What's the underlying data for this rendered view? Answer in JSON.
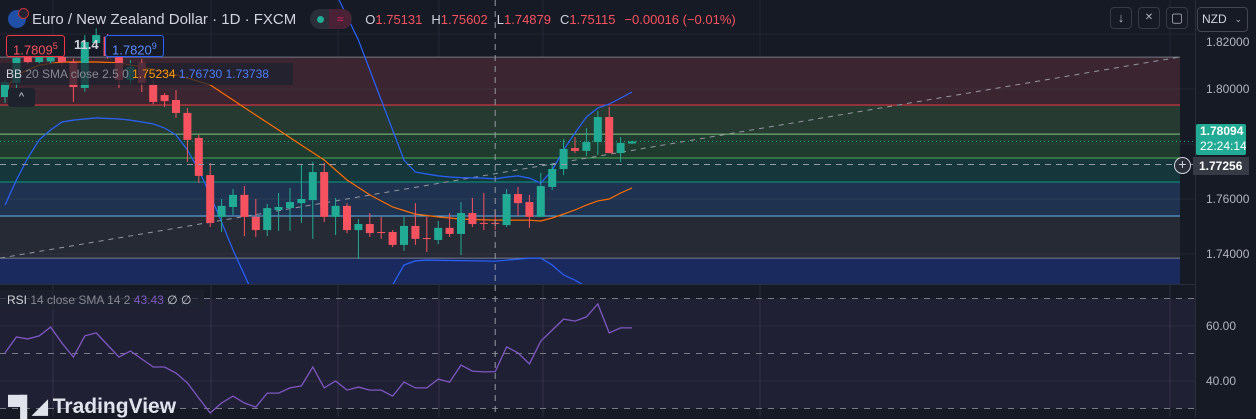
{
  "header": {
    "title": "Euro / New Zealand Dollar · 1D · FXCM",
    "status_icon": "market-open-dot",
    "wave_icon": "≈",
    "ohlc": {
      "o_label": "O",
      "o": "1.75131",
      "h_label": "H",
      "h": "1.75602",
      "l_label": "L",
      "l": "1.74879",
      "c_label": "C",
      "c": "1.75115",
      "change": "−0.00016 (−0.01%)"
    }
  },
  "toolbar": {
    "down_icon": "↓",
    "collapse_icon": "✕",
    "fullscreen_icon": "▢",
    "currency": "NZD",
    "chevron": "⌄"
  },
  "trade": {
    "sell_main": "1.7809",
    "sell_pip": "5",
    "spread": "11.4",
    "buy_main": "1.7820",
    "buy_pip": "9"
  },
  "bb_legend": {
    "name": "BB",
    "params": "20 SMA close 2.5 0",
    "basis": "1.75234",
    "upper": "1.76730",
    "lower": "1.73738",
    "collapse_icon": "^"
  },
  "rsi_legend": {
    "name": "RSI",
    "params": "14 close SMA 14 2",
    "value": "43.43",
    "na1": "∅",
    "na2": "∅"
  },
  "price_axis": {
    "labels": [
      "1.82000",
      "1.80000",
      "1.76000",
      "1.74000"
    ],
    "last_price": "1.78094",
    "countdown": "22:24:14",
    "crosshair_price": "1.77256"
  },
  "rsi_axis": {
    "labels": [
      "60.00",
      "40.00"
    ]
  },
  "branding": {
    "text": "TradingView"
  },
  "colors": {
    "up": "#22ab94",
    "down": "#f7525f",
    "bb_band": "#2962ff",
    "bb_basis": "#ff6d00",
    "rsi": "#7e57c2"
  },
  "chart_data": {
    "type": "candlestick",
    "symbol": "EURNZD",
    "interval": "1D",
    "candles": [
      [
        1.7971,
        1.8033,
        1.7949,
        1.8025
      ],
      [
        1.8022,
        1.812,
        1.8,
        1.8113
      ],
      [
        1.8116,
        1.813,
        1.809,
        1.8098
      ],
      [
        1.8098,
        1.8125,
        1.809,
        1.8116
      ],
      [
        1.81,
        1.814,
        1.809,
        1.813
      ],
      [
        1.8116,
        1.813,
        1.8085,
        1.8098
      ],
      [
        1.8098,
        1.811,
        1.7953,
        1.8007
      ],
      [
        1.8004,
        1.8196,
        1.799,
        1.8171
      ],
      [
        1.8167,
        1.822,
        1.815,
        1.8196
      ],
      [
        1.819,
        1.82,
        1.811,
        1.812
      ],
      [
        1.8116,
        1.8125,
        1.8004,
        1.8033
      ],
      [
        1.8033,
        1.8105,
        1.8015,
        1.808
      ],
      [
        1.8095,
        1.811,
        1.7989,
        1.8022
      ],
      [
        1.8015,
        1.803,
        1.7945,
        1.7953
      ],
      [
        1.7978,
        1.7985,
        1.7935,
        1.7956
      ],
      [
        1.796,
        1.7996,
        1.7895,
        1.7913
      ],
      [
        1.7913,
        1.7931,
        1.7735,
        1.7815
      ],
      [
        1.7822,
        1.7833,
        1.7658,
        1.7684
      ],
      [
        1.7687,
        1.7731,
        1.7498,
        1.7513
      ],
      [
        1.7535,
        1.76,
        1.748,
        1.7575
      ],
      [
        1.7571,
        1.7636,
        1.7542,
        1.7615
      ],
      [
        1.7615,
        1.7647,
        1.7465,
        1.7535
      ],
      [
        1.7535,
        1.76,
        1.7462,
        1.7487
      ],
      [
        1.7487,
        1.7582,
        1.7465,
        1.7567
      ],
      [
        1.756,
        1.7622,
        1.7484,
        1.7571
      ],
      [
        1.7567,
        1.764,
        1.7484,
        1.7589
      ],
      [
        1.7585,
        1.7724,
        1.7513,
        1.76
      ],
      [
        1.7596,
        1.7735,
        1.7455,
        1.7698
      ],
      [
        1.7698,
        1.7731,
        1.7516,
        1.7535
      ],
      [
        1.7535,
        1.7604,
        1.7469,
        1.7575
      ],
      [
        1.7575,
        1.7585,
        1.7476,
        1.7487
      ],
      [
        1.7487,
        1.7527,
        1.7382,
        1.7509
      ],
      [
        1.7509,
        1.7549,
        1.7462,
        1.7476
      ],
      [
        1.748,
        1.7535,
        1.7455,
        1.7478
      ],
      [
        1.748,
        1.7487,
        1.7425,
        1.7433
      ],
      [
        1.7433,
        1.7535,
        1.7411,
        1.7502
      ],
      [
        1.7502,
        1.7585,
        1.7433,
        1.7455
      ],
      [
        1.7458,
        1.7535,
        1.7407,
        1.7456
      ],
      [
        1.7451,
        1.752,
        1.7436,
        1.7495
      ],
      [
        1.7495,
        1.7549,
        1.7462,
        1.7473
      ],
      [
        1.7473,
        1.7589,
        1.7396,
        1.7549
      ],
      [
        1.7549,
        1.7604,
        1.7498,
        1.7509
      ],
      [
        1.7513,
        1.7622,
        1.7487,
        1.7511
      ],
      [
        1.75131,
        1.75602,
        1.74879,
        1.75115
      ],
      [
        1.7505,
        1.7636,
        1.7498,
        1.7618
      ],
      [
        1.7618,
        1.7644,
        1.7538,
        1.7585
      ],
      [
        1.7589,
        1.7615,
        1.7495,
        1.7535
      ],
      [
        1.7535,
        1.7695,
        1.7535,
        1.7647
      ],
      [
        1.7644,
        1.7731,
        1.7633,
        1.7709
      ],
      [
        1.7709,
        1.7818,
        1.7687,
        1.7782
      ],
      [
        1.7785,
        1.7825,
        1.7767,
        1.7775
      ],
      [
        1.7775,
        1.7858,
        1.7756,
        1.7807
      ],
      [
        1.7807,
        1.792,
        1.776,
        1.7898
      ],
      [
        1.7898,
        1.7935,
        1.7767,
        1.7767
      ],
      [
        1.7767,
        1.7825,
        1.7735,
        1.7804
      ],
      [
        1.7802,
        1.7812,
        1.78,
        1.78094
      ]
    ],
    "bb_upper": [
      [
        29,
        1.835
      ],
      [
        31,
        1.8178
      ],
      [
        32,
        1.8069
      ],
      [
        33,
        1.796
      ],
      [
        34,
        1.7851
      ],
      [
        35,
        1.7742
      ],
      [
        36,
        1.7698
      ],
      [
        37,
        1.7691
      ],
      [
        38,
        1.7684
      ],
      [
        39,
        1.768
      ],
      [
        40,
        1.7678
      ],
      [
        42,
        1.7676
      ],
      [
        43,
        1.7673
      ],
      [
        44,
        1.768
      ],
      [
        45,
        1.7684
      ],
      [
        46,
        1.7676
      ],
      [
        47,
        1.7658
      ],
      [
        48,
        1.7705
      ],
      [
        49,
        1.7778
      ],
      [
        50,
        1.784
      ],
      [
        51,
        1.7898
      ],
      [
        52,
        1.7931
      ],
      [
        53,
        1.7945
      ],
      [
        54,
        1.7967
      ],
      [
        55,
        1.7989
      ]
    ],
    "bb_lower_left": [
      [
        0,
        1.7578
      ],
      [
        1,
        1.7669
      ],
      [
        2,
        1.7749
      ],
      [
        3,
        1.7815
      ],
      [
        4,
        1.7851
      ],
      [
        5,
        1.788
      ],
      [
        6,
        1.7887
      ],
      [
        8,
        1.7895
      ],
      [
        10,
        1.7891
      ],
      [
        11,
        1.7887
      ],
      [
        12,
        1.788
      ],
      [
        13,
        1.7873
      ],
      [
        14,
        1.7858
      ],
      [
        15,
        1.7833
      ],
      [
        16,
        1.7778
      ],
      [
        17,
        1.7705
      ],
      [
        18,
        1.7615
      ],
      [
        19,
        1.7516
      ],
      [
        20,
        1.7415
      ],
      [
        21,
        1.7324
      ],
      [
        22,
        1.7233
      ]
    ],
    "bb_lower_right": [
      [
        33,
        1.722
      ],
      [
        34,
        1.7287
      ],
      [
        35,
        1.736
      ],
      [
        36,
        1.7375
      ],
      [
        37,
        1.7378
      ],
      [
        43,
        1.73738
      ],
      [
        46,
        1.7385
      ],
      [
        47,
        1.7385
      ],
      [
        48,
        1.736
      ],
      [
        49,
        1.7324
      ],
      [
        50,
        1.7305
      ],
      [
        51,
        1.728
      ],
      [
        52,
        1.722
      ]
    ],
    "bb_basis": [
      [
        0,
        1.7996
      ],
      [
        1,
        1.8051
      ],
      [
        3,
        1.8087
      ],
      [
        5,
        1.8098
      ],
      [
        8,
        1.8098
      ],
      [
        10,
        1.8095
      ],
      [
        12,
        1.808
      ],
      [
        14,
        1.8062
      ],
      [
        16,
        1.804
      ],
      [
        18,
        1.8015
      ],
      [
        20,
        1.796
      ],
      [
        22,
        1.7905
      ],
      [
        24,
        1.7851
      ],
      [
        26,
        1.7796
      ],
      [
        28,
        1.7742
      ],
      [
        30,
        1.7669
      ],
      [
        32,
        1.7615
      ],
      [
        34,
        1.7571
      ],
      [
        36,
        1.7545
      ],
      [
        38,
        1.7535
      ],
      [
        40,
        1.7527
      ],
      [
        43,
        1.75234
      ],
      [
        46,
        1.7523
      ],
      [
        47,
        1.752
      ],
      [
        48,
        1.7531
      ],
      [
        49,
        1.7545
      ],
      [
        50,
        1.756
      ],
      [
        51,
        1.7578
      ],
      [
        52,
        1.7593
      ],
      [
        53,
        1.76
      ],
      [
        54,
        1.7622
      ],
      [
        55,
        1.764
      ]
    ],
    "fib_levels": [
      {
        "price": 1.8116,
        "line": "#787b86",
        "fill": "#3b2530"
      },
      {
        "price": 1.7942,
        "line": "#f23645",
        "fill": "#263a32"
      },
      {
        "price": 1.7836,
        "line": "#81c784",
        "fill": "#1f3a2e"
      },
      {
        "price": 1.7749,
        "line": "#4caf50",
        "fill": "#15363a"
      },
      {
        "price": 1.7662,
        "line": "#089981",
        "fill": "#1f3350"
      },
      {
        "price": 1.7538,
        "line": "#64b5f6",
        "fill": "#262a35"
      },
      {
        "price": 1.7385,
        "line": "#787b86",
        "fill": "#1b2a5e"
      },
      {
        "price": 1.7291,
        "line": null,
        "fill": null
      }
    ],
    "trend_line": [
      [
        -0.44,
        1.7385
      ],
      [
        103,
        1.8116
      ]
    ],
    "crosshair": {
      "index": 43,
      "price": 1.77256
    },
    "price_range": [
      1.7291,
      1.8323
    ],
    "rsi": [
      50.2,
      56,
      55.3,
      56.4,
      59.6,
      53.8,
      48.7,
      56.4,
      57.5,
      53.1,
      48.7,
      50.9,
      48,
      45.1,
      45.1,
      42.9,
      39.3,
      33.8,
      28.4,
      32,
      34.5,
      32,
      30.5,
      35.6,
      35.6,
      37.5,
      38.2,
      45.1,
      37.5,
      40,
      36.7,
      37.8,
      36.7,
      36.7,
      34.5,
      39.6,
      37.5,
      37.5,
      40.7,
      39.6,
      45.8,
      43.6,
      43.3,
      43.43,
      52.4,
      50.2,
      46.2,
      54.5,
      58.5,
      62.5,
      61.8,
      63.3,
      68,
      57.5,
      59.3,
      59.3
    ],
    "rsi_levels": [
      70,
      50,
      30
    ]
  }
}
